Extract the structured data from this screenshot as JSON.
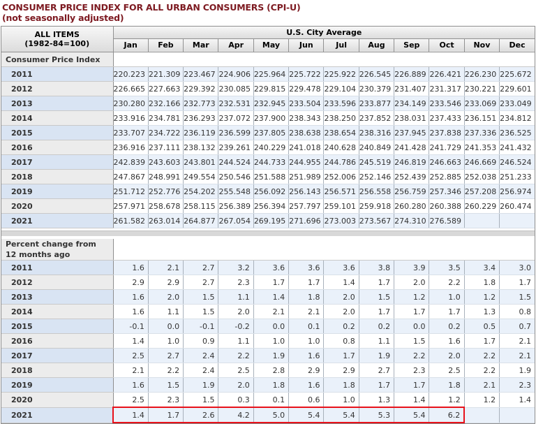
{
  "page": {
    "title": "CONSUMER PRICE INDEX FOR ALL URBAN CONSUMERS (CPI-U)",
    "subtitle": "(not seasonally adjusted)"
  },
  "table_header": {
    "row_label_line1": "ALL ITEMS",
    "row_label_line2": "(1982-84=100)",
    "group_label": "U.S. City Average"
  },
  "chart_data": {
    "type": "table",
    "title": "Consumer Price Index for All Urban Consumers (CPI-U), not seasonally adjusted, All Items (1982-84=100), U.S. City Average",
    "months": [
      "Jan",
      "Feb",
      "Mar",
      "Apr",
      "May",
      "Jun",
      "Jul",
      "Aug",
      "Sep",
      "Oct",
      "Nov",
      "Dec"
    ],
    "sections": [
      {
        "label": "Consumer Price Index",
        "rows": [
          {
            "year": "2011",
            "values": [
              "220.223",
              "221.309",
              "223.467",
              "224.906",
              "225.964",
              "225.722",
              "225.922",
              "226.545",
              "226.889",
              "226.421",
              "226.230",
              "225.672"
            ]
          },
          {
            "year": "2012",
            "values": [
              "226.665",
              "227.663",
              "229.392",
              "230.085",
              "229.815",
              "229.478",
              "229.104",
              "230.379",
              "231.407",
              "231.317",
              "230.221",
              "229.601"
            ]
          },
          {
            "year": "2013",
            "values": [
              "230.280",
              "232.166",
              "232.773",
              "232.531",
              "232.945",
              "233.504",
              "233.596",
              "233.877",
              "234.149",
              "233.546",
              "233.069",
              "233.049"
            ]
          },
          {
            "year": "2014",
            "values": [
              "233.916",
              "234.781",
              "236.293",
              "237.072",
              "237.900",
              "238.343",
              "238.250",
              "237.852",
              "238.031",
              "237.433",
              "236.151",
              "234.812"
            ]
          },
          {
            "year": "2015",
            "values": [
              "233.707",
              "234.722",
              "236.119",
              "236.599",
              "237.805",
              "238.638",
              "238.654",
              "238.316",
              "237.945",
              "237.838",
              "237.336",
              "236.525"
            ]
          },
          {
            "year": "2016",
            "values": [
              "236.916",
              "237.111",
              "238.132",
              "239.261",
              "240.229",
              "241.018",
              "240.628",
              "240.849",
              "241.428",
              "241.729",
              "241.353",
              "241.432"
            ]
          },
          {
            "year": "2017",
            "values": [
              "242.839",
              "243.603",
              "243.801",
              "244.524",
              "244.733",
              "244.955",
              "244.786",
              "245.519",
              "246.819",
              "246.663",
              "246.669",
              "246.524"
            ]
          },
          {
            "year": "2018",
            "values": [
              "247.867",
              "248.991",
              "249.554",
              "250.546",
              "251.588",
              "251.989",
              "252.006",
              "252.146",
              "252.439",
              "252.885",
              "252.038",
              "251.233"
            ]
          },
          {
            "year": "2019",
            "values": [
              "251.712",
              "252.776",
              "254.202",
              "255.548",
              "256.092",
              "256.143",
              "256.571",
              "256.558",
              "256.759",
              "257.346",
              "257.208",
              "256.974"
            ]
          },
          {
            "year": "2020",
            "values": [
              "257.971",
              "258.678",
              "258.115",
              "256.389",
              "256.394",
              "257.797",
              "259.101",
              "259.918",
              "260.280",
              "260.388",
              "260.229",
              "260.474"
            ]
          },
          {
            "year": "2021",
            "values": [
              "261.582",
              "263.014",
              "264.877",
              "267.054",
              "269.195",
              "271.696",
              "273.003",
              "273.567",
              "274.310",
              "276.589",
              "",
              ""
            ]
          }
        ]
      },
      {
        "label": "Percent change from 12 months ago",
        "label_lines": [
          "Percent change from",
          "12 months ago"
        ],
        "rows": [
          {
            "year": "2011",
            "values": [
              "1.6",
              "2.1",
              "2.7",
              "3.2",
              "3.6",
              "3.6",
              "3.6",
              "3.8",
              "3.9",
              "3.5",
              "3.4",
              "3.0"
            ]
          },
          {
            "year": "2012",
            "values": [
              "2.9",
              "2.9",
              "2.7",
              "2.3",
              "1.7",
              "1.7",
              "1.4",
              "1.7",
              "2.0",
              "2.2",
              "1.8",
              "1.7"
            ]
          },
          {
            "year": "2013",
            "values": [
              "1.6",
              "2.0",
              "1.5",
              "1.1",
              "1.4",
              "1.8",
              "2.0",
              "1.5",
              "1.2",
              "1.0",
              "1.2",
              "1.5"
            ]
          },
          {
            "year": "2014",
            "values": [
              "1.6",
              "1.1",
              "1.5",
              "2.0",
              "2.1",
              "2.1",
              "2.0",
              "1.7",
              "1.7",
              "1.7",
              "1.3",
              "0.8"
            ]
          },
          {
            "year": "2015",
            "values": [
              "-0.1",
              "0.0",
              "-0.1",
              "-0.2",
              "0.0",
              "0.1",
              "0.2",
              "0.2",
              "0.0",
              "0.2",
              "0.5",
              "0.7"
            ]
          },
          {
            "year": "2016",
            "values": [
              "1.4",
              "1.0",
              "0.9",
              "1.1",
              "1.0",
              "1.0",
              "0.8",
              "1.1",
              "1.5",
              "1.6",
              "1.7",
              "2.1"
            ]
          },
          {
            "year": "2017",
            "values": [
              "2.5",
              "2.7",
              "2.4",
              "2.2",
              "1.9",
              "1.6",
              "1.7",
              "1.9",
              "2.2",
              "2.0",
              "2.2",
              "2.1"
            ]
          },
          {
            "year": "2018",
            "values": [
              "2.1",
              "2.2",
              "2.4",
              "2.5",
              "2.8",
              "2.9",
              "2.9",
              "2.7",
              "2.3",
              "2.5",
              "2.2",
              "1.9"
            ]
          },
          {
            "year": "2019",
            "values": [
              "1.6",
              "1.5",
              "1.9",
              "2.0",
              "1.8",
              "1.6",
              "1.8",
              "1.7",
              "1.7",
              "1.8",
              "2.1",
              "2.3"
            ]
          },
          {
            "year": "2020",
            "values": [
              "2.5",
              "2.3",
              "1.5",
              "0.3",
              "0.1",
              "0.6",
              "1.0",
              "1.3",
              "1.4",
              "1.2",
              "1.2",
              "1.4"
            ]
          },
          {
            "year": "2021",
            "values": [
              "1.4",
              "1.7",
              "2.6",
              "4.2",
              "5.0",
              "5.4",
              "5.4",
              "5.3",
              "5.4",
              "6.2",
              "",
              ""
            ]
          }
        ]
      }
    ]
  },
  "highlight": {
    "section_index": 1,
    "year": "2021",
    "month_start_index": 0,
    "month_end_index": 9,
    "color": "#e8111a"
  },
  "colors": {
    "title_text": "#7d1a21",
    "header_bg": "#e3e3e3",
    "row_blue_label": "#d9e4f3",
    "row_blue_cell": "#eaf1fa",
    "row_alt_label": "#ececec",
    "row_alt_cell": "#ffffff",
    "section_label_bg": "#ececec",
    "grid_vertical": "#a8b1bb",
    "grid_horizontal": "#d9e0e8",
    "outer_border": "#8e8e8e",
    "separator_band": "#d8d8d8",
    "highlight_red": "#e8111a"
  }
}
